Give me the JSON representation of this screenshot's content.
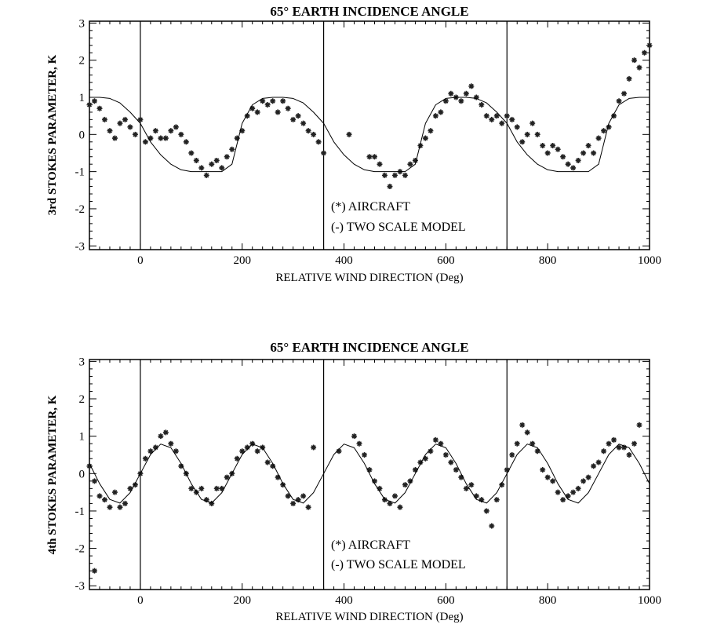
{
  "chart_data": [
    {
      "type": "scatter",
      "title": "65° EARTH INCIDENCE ANGLE",
      "xlabel": "RELATIVE WIND DIRECTION (Deg)",
      "ylabel": "3rd STOKES PARAMETER, K",
      "xlim": [
        -100,
        1000
      ],
      "ylim": [
        -3.1,
        3.05
      ],
      "xticks": [
        0,
        200,
        400,
        600,
        800,
        1000
      ],
      "yticks": [
        -3,
        -2,
        -1,
        0,
        1,
        2,
        3
      ],
      "reference_lines_x": [
        0,
        360,
        720
      ],
      "legend": [
        "(*) AIRCRAFT",
        "(-) TWO SCALE MODEL"
      ],
      "grid": false,
      "marker_color": "#222222",
      "series": [
        {
          "name": "(*) AIRCRAFT",
          "kind": "scatter",
          "x": [
            -100,
            -90,
            -80,
            -70,
            -60,
            -50,
            -40,
            -30,
            -20,
            -10,
            0,
            10,
            20,
            30,
            40,
            50,
            60,
            70,
            80,
            90,
            100,
            110,
            120,
            130,
            140,
            150,
            160,
            170,
            180,
            190,
            200,
            210,
            220,
            230,
            240,
            250,
            260,
            270,
            280,
            290,
            300,
            310,
            320,
            330,
            340,
            350,
            360,
            410,
            450,
            460,
            470,
            480,
            490,
            500,
            510,
            520,
            530,
            540,
            550,
            560,
            570,
            580,
            590,
            600,
            610,
            620,
            630,
            640,
            650,
            660,
            670,
            680,
            690,
            700,
            710,
            720,
            730,
            740,
            750,
            760,
            770,
            780,
            790,
            800,
            810,
            820,
            830,
            840,
            850,
            860,
            870,
            880,
            890,
            900,
            910,
            920,
            930,
            940,
            950,
            960,
            970,
            980,
            990,
            1000
          ],
          "y": [
            0.8,
            0.9,
            0.7,
            0.4,
            0.1,
            -0.1,
            0.3,
            0.4,
            0.2,
            0.0,
            0.4,
            -0.2,
            -0.1,
            0.1,
            -0.1,
            -0.1,
            0.1,
            0.2,
            0.0,
            -0.2,
            -0.5,
            -0.7,
            -0.9,
            -1.1,
            -0.8,
            -0.7,
            -0.9,
            -0.6,
            -0.4,
            -0.1,
            0.1,
            0.5,
            0.7,
            0.6,
            0.9,
            0.8,
            0.9,
            0.6,
            0.9,
            0.7,
            0.4,
            0.5,
            0.3,
            0.1,
            0.0,
            -0.2,
            -0.5,
            0.0,
            -0.6,
            -0.6,
            -0.8,
            -1.1,
            -1.4,
            -1.1,
            -1.0,
            -1.1,
            -0.8,
            -0.7,
            -0.3,
            -0.1,
            0.1,
            0.5,
            0.6,
            0.9,
            1.1,
            1.0,
            0.9,
            1.1,
            1.3,
            1.0,
            0.8,
            0.5,
            0.4,
            0.5,
            0.3,
            0.5,
            0.4,
            0.2,
            -0.2,
            0.0,
            0.3,
            0.0,
            -0.3,
            -0.5,
            -0.3,
            -0.4,
            -0.6,
            -0.8,
            -0.9,
            -0.7,
            -0.5,
            -0.3,
            -0.5,
            -0.1,
            0.1,
            0.2,
            0.5,
            0.9,
            1.1,
            1.5,
            2.0,
            1.8,
            2.2,
            2.4
          ]
        },
        {
          "name": "(-) TWO SCALE MODEL",
          "kind": "line",
          "x_start": -100,
          "x_step": 20,
          "y": [
            1,
            1,
            0.97,
            0.85,
            0.6,
            0.3,
            -0.2,
            -0.55,
            -0.8,
            -0.95,
            -1,
            -1,
            -1,
            -1,
            -0.8,
            0.3,
            0.8,
            0.97,
            1,
            1,
            0.97,
            0.85,
            0.6,
            0.3,
            -0.2,
            -0.55,
            -0.8,
            -0.95,
            -1,
            -1,
            -1,
            -1,
            -0.8,
            0.3,
            0.8,
            0.97,
            1,
            1,
            0.97,
            0.85,
            0.6,
            0.3,
            -0.2,
            -0.55,
            -0.8,
            -0.95,
            -1,
            -1,
            -1,
            -1,
            -0.8,
            0.3,
            0.8,
            0.97,
            1,
            1
          ]
        }
      ]
    },
    {
      "type": "scatter",
      "title": "65° EARTH INCIDENCE ANGLE",
      "xlabel": "RELATIVE WIND DIRECTION (Deg)",
      "ylabel": "4th STOKES PARAMETER, K",
      "xlim": [
        -100,
        1000
      ],
      "ylim": [
        -3.1,
        3.05
      ],
      "xticks": [
        0,
        200,
        400,
        600,
        800,
        1000
      ],
      "yticks": [
        -3,
        -2,
        -1,
        0,
        1,
        2,
        3
      ],
      "reference_lines_x": [
        0,
        360,
        720
      ],
      "legend": [
        "(*) AIRCRAFT",
        "(-) TWO SCALE MODEL"
      ],
      "grid": false,
      "marker_color": "#222222",
      "series": [
        {
          "name": "(*) AIRCRAFT",
          "kind": "scatter",
          "x": [
            -100,
            -90,
            -90,
            -80,
            -70,
            -60,
            -50,
            -40,
            -30,
            -20,
            -10,
            0,
            10,
            20,
            30,
            40,
            50,
            60,
            70,
            80,
            90,
            100,
            110,
            120,
            130,
            140,
            150,
            160,
            170,
            180,
            190,
            200,
            210,
            220,
            230,
            240,
            250,
            260,
            270,
            280,
            290,
            300,
            310,
            320,
            330,
            340,
            390,
            420,
            430,
            440,
            450,
            460,
            470,
            480,
            490,
            500,
            510,
            520,
            530,
            540,
            550,
            560,
            570,
            580,
            590,
            600,
            610,
            620,
            630,
            640,
            650,
            660,
            670,
            680,
            690,
            700,
            710,
            720,
            730,
            740,
            750,
            760,
            770,
            780,
            790,
            800,
            810,
            820,
            830,
            840,
            850,
            860,
            870,
            880,
            890,
            900,
            910,
            920,
            930,
            940,
            950,
            960,
            970,
            980
          ],
          "y": [
            0.2,
            -0.2,
            -2.6,
            -0.6,
            -0.7,
            -0.9,
            -0.5,
            -0.9,
            -0.8,
            -0.4,
            -0.3,
            0.0,
            0.4,
            0.6,
            0.7,
            1.0,
            1.1,
            0.8,
            0.6,
            0.2,
            0.0,
            -0.4,
            -0.5,
            -0.4,
            -0.7,
            -0.8,
            -0.4,
            -0.4,
            -0.1,
            0.0,
            0.4,
            0.6,
            0.7,
            0.8,
            0.6,
            0.7,
            0.3,
            0.2,
            -0.1,
            -0.3,
            -0.6,
            -0.8,
            -0.7,
            -0.6,
            -0.9,
            0.7,
            0.6,
            1.0,
            0.8,
            0.5,
            0.1,
            -0.2,
            -0.4,
            -0.7,
            -0.8,
            -0.6,
            -0.9,
            -0.3,
            -0.2,
            0.1,
            0.3,
            0.4,
            0.6,
            0.9,
            0.8,
            0.5,
            0.3,
            0.1,
            -0.1,
            -0.4,
            -0.3,
            -0.6,
            -0.7,
            -1.0,
            -1.4,
            -0.7,
            -0.3,
            0.1,
            0.5,
            0.8,
            1.3,
            1.1,
            0.8,
            0.6,
            0.1,
            -0.1,
            -0.2,
            -0.5,
            -0.7,
            -0.6,
            -0.5,
            -0.4,
            -0.2,
            -0.1,
            0.2,
            0.3,
            0.6,
            0.8,
            0.9,
            0.7,
            0.7,
            0.5,
            0.8,
            1.3
          ]
        },
        {
          "name": "(-) TWO SCALE MODEL",
          "kind": "line",
          "x_start": -100,
          "x_step": 20,
          "y": [
            0.27,
            -0.27,
            -0.69,
            -0.79,
            -0.51,
            0,
            0.51,
            0.79,
            0.69,
            0.27,
            -0.27,
            -0.69,
            -0.79,
            -0.51,
            0,
            0.51,
            0.79,
            0.69,
            0.27,
            -0.27,
            -0.69,
            -0.79,
            -0.51,
            0,
            0.51,
            0.79,
            0.69,
            0.27,
            -0.27,
            -0.69,
            -0.79,
            -0.51,
            0,
            0.51,
            0.79,
            0.69,
            0.27,
            -0.27,
            -0.69,
            -0.79,
            -0.51,
            0,
            0.51,
            0.79,
            0.69,
            0.27,
            -0.27,
            -0.69,
            -0.79,
            -0.51,
            0,
            0.51,
            0.79,
            0.69,
            0.27,
            -0.27
          ]
        }
      ]
    }
  ]
}
